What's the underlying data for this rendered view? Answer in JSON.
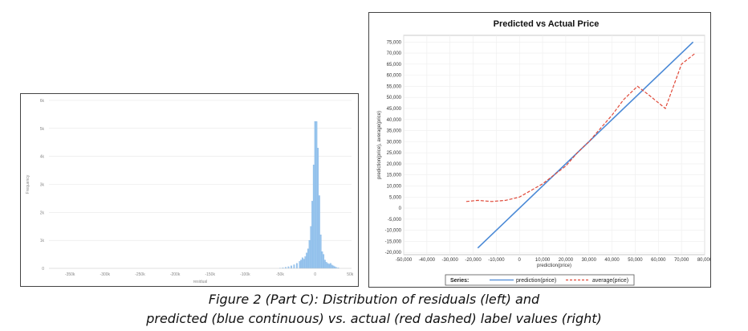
{
  "caption": {
    "line1": "Figure 2 (Part C): Distribution of residuals (left) and",
    "line2": "predicted (blue continuous) vs. actual (red dashed) label values (right)"
  },
  "chart_data": [
    {
      "type": "bar",
      "title": "",
      "xlabel": "residual",
      "ylabel": "Frequency",
      "xlim": [
        -380000,
        52000
      ],
      "ylim": [
        0,
        6000
      ],
      "x_ticks": [
        "-350k",
        "-300k",
        "-250k",
        "-200k",
        "-150k",
        "-100k",
        "-50k",
        "0",
        "50k"
      ],
      "y_ticks": [
        "0",
        "1k",
        "2k",
        "3k",
        "4k",
        "5k",
        "6k"
      ],
      "bar_color": "#9cc7ee",
      "bins": [
        {
          "x": -50000,
          "y": 10
        },
        {
          "x": -46000,
          "y": 20
        },
        {
          "x": -42000,
          "y": 40
        },
        {
          "x": -38000,
          "y": 60
        },
        {
          "x": -34000,
          "y": 90
        },
        {
          "x": -30000,
          "y": 130
        },
        {
          "x": -26000,
          "y": 180
        },
        {
          "x": -22000,
          "y": 250
        },
        {
          "x": -20000,
          "y": 300
        },
        {
          "x": -18000,
          "y": 380
        },
        {
          "x": -16000,
          "y": 330
        },
        {
          "x": -14000,
          "y": 420
        },
        {
          "x": -12000,
          "y": 550
        },
        {
          "x": -10000,
          "y": 700
        },
        {
          "x": -8000,
          "y": 1000
        },
        {
          "x": -6000,
          "y": 1500
        },
        {
          "x": -4000,
          "y": 2400
        },
        {
          "x": -2000,
          "y": 3700
        },
        {
          "x": 0,
          "y": 5250
        },
        {
          "x": 2000,
          "y": 5250
        },
        {
          "x": 4000,
          "y": 4300
        },
        {
          "x": 6000,
          "y": 2600
        },
        {
          "x": 8000,
          "y": 1200
        },
        {
          "x": 10000,
          "y": 600
        },
        {
          "x": 12000,
          "y": 500
        },
        {
          "x": 14000,
          "y": 300
        },
        {
          "x": 16000,
          "y": 220
        },
        {
          "x": 18000,
          "y": 180
        },
        {
          "x": 20000,
          "y": 150
        },
        {
          "x": 22000,
          "y": 180
        },
        {
          "x": 24000,
          "y": 120
        },
        {
          "x": 26000,
          "y": 90
        },
        {
          "x": 28000,
          "y": 60
        },
        {
          "x": 30000,
          "y": 40
        },
        {
          "x": 33000,
          "y": 20
        }
      ]
    },
    {
      "type": "line",
      "title": "Predicted vs Actual Price",
      "xlabel": "prediction(price)",
      "ylabel": "prediction(price), average(price)",
      "xlim": [
        -50000,
        80000
      ],
      "ylim": [
        -21000,
        78000
      ],
      "x_ticks": [
        "-50,000",
        "-40,000",
        "-30,000",
        "-20,000",
        "-10,000",
        "0",
        "10,000",
        "20,000",
        "30,000",
        "40,000",
        "50,000",
        "60,000",
        "70,000",
        "80,000"
      ],
      "y_ticks": [
        "75,000",
        "70,000",
        "65,000",
        "60,000",
        "55,000",
        "50,000",
        "45,000",
        "40,000",
        "35,000",
        "30,000",
        "25,000",
        "20,000",
        "15,000",
        "10,000",
        "5,000",
        "0",
        "-5,000",
        "-10,000",
        "-15,000",
        "-20,000"
      ],
      "legend_title": "Series:",
      "series": [
        {
          "name": "prediction(price)",
          "color": "#4a89d6",
          "style": "solid",
          "x": [
            -18000,
            75000
          ],
          "y": [
            -18000,
            75000
          ]
        },
        {
          "name": "average(price)",
          "color": "#e04a3a",
          "style": "dashed",
          "x": [
            -23000,
            -18000,
            -12000,
            -6000,
            0,
            5000,
            10000,
            15000,
            20000,
            25000,
            30000,
            35000,
            40000,
            45000,
            51000,
            56000,
            63000,
            70000,
            76000
          ],
          "y": [
            3000,
            3500,
            3000,
            3500,
            5000,
            8000,
            11000,
            15000,
            19000,
            25000,
            30000,
            36000,
            42000,
            49000,
            55000,
            51000,
            45000,
            65000,
            70000
          ]
        }
      ]
    }
  ]
}
